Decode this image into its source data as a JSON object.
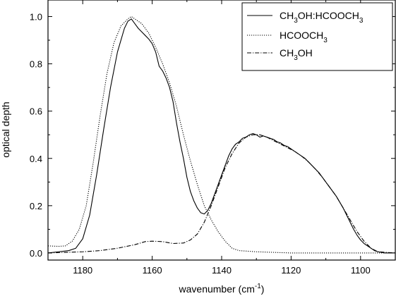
{
  "chart_data": {
    "type": "line",
    "title": "",
    "xlabel": {
      "main": "wavenumber (cm",
      "sup": "-1",
      "end": ")"
    },
    "ylabel": "optical depth",
    "xlim": [
      1190,
      1090
    ],
    "ylim": [
      -0.03,
      1.07
    ],
    "x_ticks": [
      1180,
      1160,
      1140,
      1120,
      1100
    ],
    "y_ticks": [
      0.0,
      0.2,
      0.4,
      0.6,
      0.8,
      1.0
    ],
    "y_tick_labels": [
      "0.0",
      "0.2",
      "0.4",
      "0.6",
      "0.8",
      "1.0"
    ],
    "grid": false,
    "legend_position": "top-right",
    "series": [
      {
        "key": "mixture",
        "style": "solid",
        "color": "#000000",
        "legend": [
          {
            "t": "CH"
          },
          {
            "t": "3",
            "sub": true
          },
          {
            "t": "OH:HCOOCH"
          },
          {
            "t": "3",
            "sub": true
          }
        ],
        "points": [
          [
            1190,
            0.0
          ],
          [
            1187,
            0.005
          ],
          [
            1184,
            0.01
          ],
          [
            1182,
            0.02
          ],
          [
            1180,
            0.06
          ],
          [
            1178,
            0.16
          ],
          [
            1176,
            0.33
          ],
          [
            1174,
            0.52
          ],
          [
            1172,
            0.7
          ],
          [
            1170,
            0.85
          ],
          [
            1168,
            0.95
          ],
          [
            1167,
            0.98
          ],
          [
            1166,
            0.99
          ],
          [
            1165,
            0.97
          ],
          [
            1164,
            0.95
          ],
          [
            1163,
            0.935
          ],
          [
            1162,
            0.92
          ],
          [
            1161,
            0.905
          ],
          [
            1160,
            0.885
          ],
          [
            1159,
            0.85
          ],
          [
            1158,
            0.79
          ],
          [
            1157,
            0.77
          ],
          [
            1156,
            0.74
          ],
          [
            1155,
            0.7
          ],
          [
            1154,
            0.64
          ],
          [
            1153,
            0.55
          ],
          [
            1152,
            0.47
          ],
          [
            1151,
            0.4
          ],
          [
            1150,
            0.32
          ],
          [
            1149,
            0.26
          ],
          [
            1148,
            0.22
          ],
          [
            1147,
            0.19
          ],
          [
            1146,
            0.17
          ],
          [
            1145,
            0.165
          ],
          [
            1144,
            0.18
          ],
          [
            1143,
            0.21
          ],
          [
            1142,
            0.25
          ],
          [
            1141,
            0.29
          ],
          [
            1140,
            0.33
          ],
          [
            1139,
            0.37
          ],
          [
            1138,
            0.41
          ],
          [
            1137,
            0.44
          ],
          [
            1136,
            0.46
          ],
          [
            1135,
            0.47
          ],
          [
            1134,
            0.485
          ],
          [
            1133,
            0.49
          ],
          [
            1132,
            0.5
          ],
          [
            1131,
            0.505
          ],
          [
            1130,
            0.5
          ],
          [
            1129,
            0.49
          ],
          [
            1128,
            0.495
          ],
          [
            1127,
            0.49
          ],
          [
            1126,
            0.485
          ],
          [
            1125,
            0.48
          ],
          [
            1124,
            0.47
          ],
          [
            1123,
            0.465
          ],
          [
            1122,
            0.455
          ],
          [
            1121,
            0.45
          ],
          [
            1120,
            0.44
          ],
          [
            1119,
            0.43
          ],
          [
            1118,
            0.42
          ],
          [
            1117,
            0.41
          ],
          [
            1116,
            0.4
          ],
          [
            1115,
            0.385
          ],
          [
            1114,
            0.37
          ],
          [
            1113,
            0.355
          ],
          [
            1112,
            0.34
          ],
          [
            1111,
            0.32
          ],
          [
            1110,
            0.3
          ],
          [
            1109,
            0.28
          ],
          [
            1108,
            0.26
          ],
          [
            1107,
            0.24
          ],
          [
            1106,
            0.215
          ],
          [
            1105,
            0.19
          ],
          [
            1104,
            0.16
          ],
          [
            1103,
            0.13
          ],
          [
            1102,
            0.1
          ],
          [
            1101,
            0.075
          ],
          [
            1100,
            0.055
          ],
          [
            1099,
            0.04
          ],
          [
            1098,
            0.03
          ],
          [
            1097,
            0.02
          ],
          [
            1096,
            0.01
          ],
          [
            1095,
            0.005
          ],
          [
            1093,
            0.0
          ],
          [
            1090,
            0.0
          ]
        ]
      },
      {
        "key": "hcooch3",
        "style": "dotted",
        "color": "#000000",
        "legend": [
          {
            "t": "HCOOCH"
          },
          {
            "t": "3",
            "sub": true
          }
        ],
        "points": [
          [
            1190,
            0.03
          ],
          [
            1187,
            0.028
          ],
          [
            1185,
            0.03
          ],
          [
            1183,
            0.05
          ],
          [
            1181,
            0.1
          ],
          [
            1179,
            0.2
          ],
          [
            1177,
            0.38
          ],
          [
            1175,
            0.58
          ],
          [
            1173,
            0.76
          ],
          [
            1171,
            0.89
          ],
          [
            1169,
            0.96
          ],
          [
            1167,
            0.99
          ],
          [
            1166,
            1.0
          ],
          [
            1165,
            0.99
          ],
          [
            1163,
            0.97
          ],
          [
            1161,
            0.93
          ],
          [
            1159,
            0.87
          ],
          [
            1157,
            0.8
          ],
          [
            1155,
            0.72
          ],
          [
            1153,
            0.62
          ],
          [
            1151,
            0.5
          ],
          [
            1149,
            0.39
          ],
          [
            1147,
            0.29
          ],
          [
            1145,
            0.2
          ],
          [
            1143,
            0.14
          ],
          [
            1141,
            0.09
          ],
          [
            1139,
            0.05
          ],
          [
            1137,
            0.02
          ],
          [
            1135,
            0.01
          ],
          [
            1130,
            0.005
          ],
          [
            1120,
            0.0
          ],
          [
            1110,
            0.0
          ],
          [
            1100,
            0.0
          ],
          [
            1090,
            0.0
          ]
        ]
      },
      {
        "key": "ch3oh",
        "style": "dashdot",
        "color": "#000000",
        "legend": [
          {
            "t": "CH"
          },
          {
            "t": "3",
            "sub": true
          },
          {
            "t": "OH"
          }
        ],
        "points": [
          [
            1190,
            0.0
          ],
          [
            1180,
            0.005
          ],
          [
            1175,
            0.01
          ],
          [
            1170,
            0.02
          ],
          [
            1165,
            0.035
          ],
          [
            1162,
            0.048
          ],
          [
            1160,
            0.05
          ],
          [
            1157,
            0.048
          ],
          [
            1154,
            0.04
          ],
          [
            1151,
            0.042
          ],
          [
            1149,
            0.055
          ],
          [
            1147,
            0.08
          ],
          [
            1145,
            0.13
          ],
          [
            1143,
            0.2
          ],
          [
            1141,
            0.28
          ],
          [
            1139,
            0.36
          ],
          [
            1137,
            0.42
          ],
          [
            1135,
            0.465
          ],
          [
            1133,
            0.49
          ],
          [
            1131,
            0.5
          ],
          [
            1129,
            0.5
          ],
          [
            1127,
            0.49
          ],
          [
            1125,
            0.475
          ],
          [
            1123,
            0.46
          ],
          [
            1121,
            0.445
          ],
          [
            1119,
            0.43
          ],
          [
            1117,
            0.41
          ],
          [
            1115,
            0.385
          ],
          [
            1113,
            0.355
          ],
          [
            1111,
            0.32
          ],
          [
            1109,
            0.28
          ],
          [
            1107,
            0.24
          ],
          [
            1105,
            0.19
          ],
          [
            1103,
            0.14
          ],
          [
            1101,
            0.09
          ],
          [
            1099,
            0.05
          ],
          [
            1097,
            0.02
          ],
          [
            1095,
            0.005
          ],
          [
            1090,
            0.0
          ]
        ]
      }
    ]
  }
}
